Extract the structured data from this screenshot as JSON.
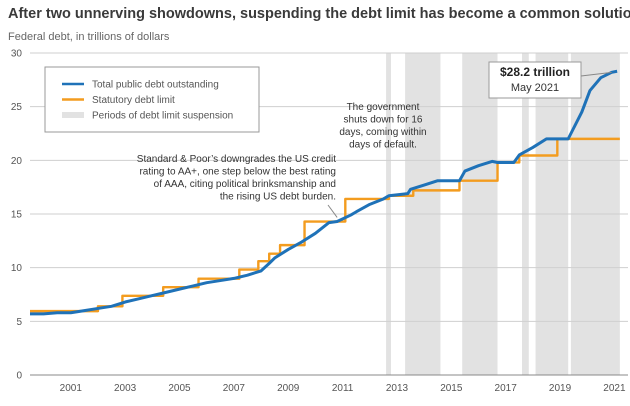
{
  "chart_data": {
    "type": "line",
    "title": "After two unnerving showdowns, suspending the debt limit has become a common solution",
    "subtitle": "Federal debt, in trillions of dollars",
    "xlim": [
      2000,
      2022
    ],
    "ylim": [
      0,
      30
    ],
    "x_ticks": [
      2001,
      2003,
      2005,
      2007,
      2009,
      2011,
      2013,
      2015,
      2017,
      2019,
      2021
    ],
    "y_ticks": [
      0,
      5,
      10,
      15,
      20,
      25,
      30
    ],
    "grid": "horizontal",
    "legend_position": "top-left",
    "legend": [
      {
        "label": "Total public debt outstanding",
        "color": "#1f72b8",
        "kind": "line"
      },
      {
        "label": "Statutory debt limit",
        "color": "#f39c1f",
        "kind": "line"
      },
      {
        "label": "Periods of debt limit suspension",
        "color": "#e2e2e2",
        "kind": "band"
      }
    ],
    "suspension_periods": [
      [
        2013.1,
        2013.28
      ],
      [
        2013.8,
        2015.1
      ],
      [
        2015.9,
        2017.2
      ],
      [
        2018.1,
        2018.35
      ],
      [
        2018.6,
        2019.8
      ],
      [
        2019.9,
        2021.7
      ]
    ],
    "series": [
      {
        "name": "Total public debt outstanding",
        "color": "#1f72b8",
        "points": [
          [
            2000.0,
            5.7
          ],
          [
            2000.5,
            5.7
          ],
          [
            2001.0,
            5.8
          ],
          [
            2001.5,
            5.8
          ],
          [
            2002.0,
            6.0
          ],
          [
            2002.5,
            6.2
          ],
          [
            2003.0,
            6.4
          ],
          [
            2003.5,
            6.8
          ],
          [
            2004.0,
            7.1
          ],
          [
            2004.5,
            7.4
          ],
          [
            2005.0,
            7.7
          ],
          [
            2005.5,
            8.0
          ],
          [
            2006.0,
            8.3
          ],
          [
            2006.5,
            8.6
          ],
          [
            2007.0,
            8.8
          ],
          [
            2007.5,
            9.0
          ],
          [
            2008.0,
            9.3
          ],
          [
            2008.5,
            9.7
          ],
          [
            2008.8,
            10.4
          ],
          [
            2009.0,
            10.9
          ],
          [
            2009.5,
            11.7
          ],
          [
            2010.0,
            12.4
          ],
          [
            2010.5,
            13.2
          ],
          [
            2011.0,
            14.2
          ],
          [
            2011.3,
            14.3
          ],
          [
            2011.8,
            14.9
          ],
          [
            2012.0,
            15.2
          ],
          [
            2012.5,
            15.9
          ],
          [
            2013.0,
            16.4
          ],
          [
            2013.2,
            16.7
          ],
          [
            2013.9,
            16.9
          ],
          [
            2014.0,
            17.3
          ],
          [
            2014.5,
            17.7
          ],
          [
            2015.0,
            18.1
          ],
          [
            2015.8,
            18.1
          ],
          [
            2016.0,
            19.0
          ],
          [
            2016.5,
            19.5
          ],
          [
            2017.0,
            19.9
          ],
          [
            2017.2,
            19.8
          ],
          [
            2017.8,
            19.8
          ],
          [
            2018.0,
            20.5
          ],
          [
            2018.5,
            21.2
          ],
          [
            2019.0,
            22.0
          ],
          [
            2019.3,
            22.0
          ],
          [
            2019.8,
            22.0
          ],
          [
            2020.0,
            23.0
          ],
          [
            2020.3,
            24.5
          ],
          [
            2020.6,
            26.5
          ],
          [
            2021.0,
            27.7
          ],
          [
            2021.4,
            28.2
          ],
          [
            2021.6,
            28.3
          ]
        ]
      },
      {
        "name": "Statutory debt limit",
        "color": "#f39c1f",
        "step": true,
        "points": [
          [
            2000.0,
            5.95
          ],
          [
            2002.5,
            6.4
          ],
          [
            2003.4,
            7.38
          ],
          [
            2004.9,
            8.18
          ],
          [
            2006.2,
            8.97
          ],
          [
            2007.7,
            9.82
          ],
          [
            2008.4,
            10.6
          ],
          [
            2008.8,
            11.3
          ],
          [
            2009.2,
            12.1
          ],
          [
            2010.1,
            14.3
          ],
          [
            2011.6,
            16.4
          ],
          [
            2013.2,
            16.7
          ],
          [
            2014.1,
            17.2
          ],
          [
            2015.8,
            18.1
          ],
          [
            2017.2,
            19.8
          ],
          [
            2018.0,
            20.45
          ],
          [
            2019.4,
            22.0
          ],
          [
            2021.7,
            22.0
          ]
        ]
      }
    ],
    "callout": {
      "value": "$28.2 trillion",
      "date": "May 2021",
      "x": 2021.4,
      "y": 28.2
    },
    "annotations": [
      {
        "lines": [
          "Standard & Poor’s downgrades the US credit",
          "rating to AA+, one step below the best rating",
          "of AAA, citing political brinksmanship and",
          "the rising US debt burden."
        ],
        "x": 2011.3,
        "y": 14.4
      },
      {
        "lines": [
          "The government",
          "shuts down for 16",
          "days, coming within",
          "days of default."
        ],
        "x": 2013.9,
        "y": 16.9
      }
    ]
  }
}
